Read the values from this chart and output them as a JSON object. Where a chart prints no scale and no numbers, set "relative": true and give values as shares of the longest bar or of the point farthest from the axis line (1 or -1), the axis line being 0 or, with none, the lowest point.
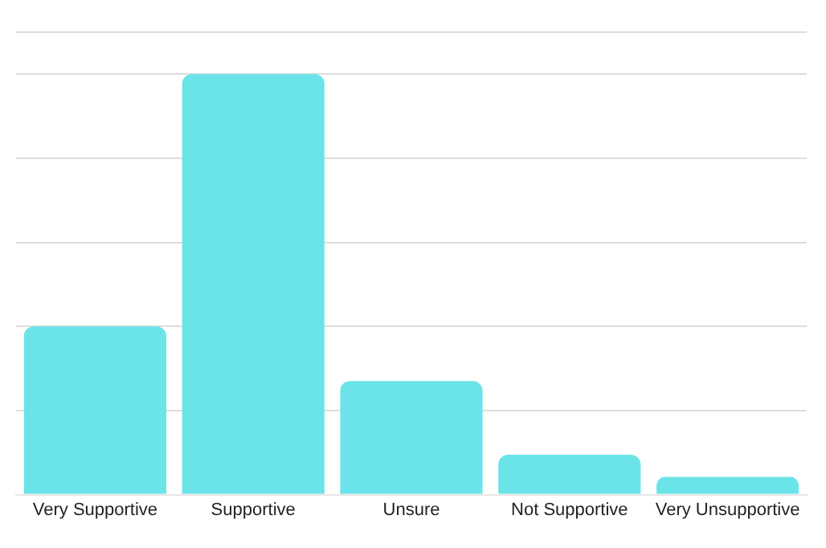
{
  "chart_data": {
    "type": "bar",
    "relative": true,
    "grid": "y",
    "categories": [
      "Very Supportive",
      "Supportive",
      "Unsure",
      "Not Supportive",
      "Very Unsupportive"
    ],
    "values": [
      0.4,
      1,
      0.27,
      0.095,
      0.042
    ],
    "color": "#6ae4e8"
  }
}
